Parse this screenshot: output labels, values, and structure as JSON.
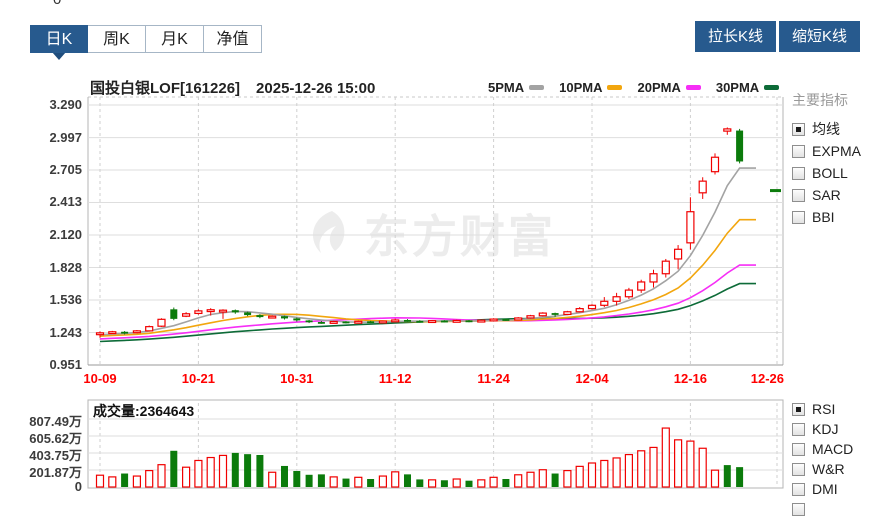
{
  "page": {
    "clipped_top_text": "0"
  },
  "toolbar": {
    "tabs": [
      {
        "label": "日K",
        "active": true
      },
      {
        "label": "周K",
        "active": false
      },
      {
        "label": "月K",
        "active": false
      },
      {
        "label": "净值",
        "active": false
      }
    ],
    "stretch_button": "拉长K线",
    "shrink_button": "缩短K线"
  },
  "header": {
    "title": "国投白银LOF[161226]",
    "datetime": "2025-12-26 15:00"
  },
  "watermark": "东方财富",
  "sidebar": {
    "main_title": "主要指标",
    "main_indicators": [
      {
        "label": "均线",
        "checked": true
      },
      {
        "label": "EXPMA",
        "checked": false
      },
      {
        "label": "BOLL",
        "checked": false
      },
      {
        "label": "SAR",
        "checked": false
      },
      {
        "label": "BBI",
        "checked": false
      }
    ],
    "sub_indicators": [
      {
        "label": "RSI",
        "checked": true
      },
      {
        "label": "KDJ",
        "checked": false
      },
      {
        "label": "MACD",
        "checked": false
      },
      {
        "label": "W&R",
        "checked": false
      },
      {
        "label": "DMI",
        "checked": false
      },
      {
        "label": "",
        "checked": false
      }
    ]
  },
  "volume_panel": {
    "label": "成交量:2364643",
    "y_ticks": [
      "807.49万",
      "605.62万",
      "403.75万",
      "201.87万",
      "0"
    ]
  },
  "chart_data": {
    "type": "candlestick",
    "title": "国投白银LOF[161226]",
    "datetime": "2025-12-26 15:00",
    "y_ticks": [
      "3.290",
      "2.997",
      "2.705",
      "2.413",
      "2.120",
      "1.828",
      "1.536",
      "1.243",
      "0.951"
    ],
    "ylim": [
      0.951,
      3.29
    ],
    "x_labels": [
      "10-09",
      "10-21",
      "10-31",
      "11-12",
      "11-24",
      "12-04",
      "12-16",
      "12-26"
    ],
    "x_label_indices": [
      0,
      8,
      16,
      24,
      32,
      40,
      48,
      52
    ],
    "legend": [
      {
        "label": "5PMA",
        "color": "#a3a3a3",
        "window": 5
      },
      {
        "label": "10PMA",
        "color": "#f2a60e",
        "window": 10
      },
      {
        "label": "20PMA",
        "color": "#f62ef6",
        "window": 20
      },
      {
        "label": "30PMA",
        "color": "#0d6b38",
        "window": 30
      }
    ],
    "up_color": "#f10000",
    "down_color": "#0b7b0b",
    "grid": true,
    "price_marker": 2.52,
    "last_volume_raw": 2364643,
    "volume_y_ticks_wan": [
      807.49,
      605.62,
      403.75,
      201.87,
      0
    ],
    "ma_prehistory": {
      "start": 1.09,
      "end": 1.225,
      "count": 30
    },
    "candles": [
      [
        1.225,
        1.252,
        1.196,
        1.24,
        140,
        "u"
      ],
      [
        1.24,
        1.258,
        1.232,
        1.25,
        120,
        "u"
      ],
      [
        1.25,
        1.256,
        1.226,
        1.24,
        160,
        "d"
      ],
      [
        1.242,
        1.266,
        1.236,
        1.258,
        130,
        "u"
      ],
      [
        1.258,
        1.306,
        1.252,
        1.296,
        195,
        "u"
      ],
      [
        1.3,
        1.372,
        1.294,
        1.362,
        265,
        "u"
      ],
      [
        1.452,
        1.468,
        1.354,
        1.366,
        430,
        "d"
      ],
      [
        1.39,
        1.426,
        1.382,
        1.412,
        235,
        "u"
      ],
      [
        1.415,
        1.452,
        1.404,
        1.438,
        315,
        "u"
      ],
      [
        1.438,
        1.462,
        1.396,
        1.448,
        350,
        "u"
      ],
      [
        1.432,
        1.452,
        1.366,
        1.444,
        375,
        "u"
      ],
      [
        1.444,
        1.45,
        1.412,
        1.424,
        405,
        "d"
      ],
      [
        1.424,
        1.43,
        1.39,
        1.4,
        390,
        "d"
      ],
      [
        1.4,
        1.408,
        1.372,
        1.382,
        380,
        "d"
      ],
      [
        1.382,
        1.398,
        1.37,
        1.39,
        175,
        "u"
      ],
      [
        1.39,
        1.394,
        1.36,
        1.37,
        250,
        "d"
      ],
      [
        1.37,
        1.378,
        1.342,
        1.352,
        190,
        "d"
      ],
      [
        1.352,
        1.356,
        1.328,
        1.338,
        145,
        "d"
      ],
      [
        1.338,
        1.346,
        1.322,
        1.33,
        150,
        "d"
      ],
      [
        1.33,
        1.348,
        1.324,
        1.342,
        120,
        "u"
      ],
      [
        1.342,
        1.346,
        1.324,
        1.33,
        100,
        "d"
      ],
      [
        1.33,
        1.35,
        1.326,
        1.344,
        115,
        "u"
      ],
      [
        1.344,
        1.348,
        1.328,
        1.334,
        95,
        "d"
      ],
      [
        1.334,
        1.352,
        1.33,
        1.346,
        130,
        "u"
      ],
      [
        1.346,
        1.368,
        1.34,
        1.356,
        180,
        "u"
      ],
      [
        1.356,
        1.364,
        1.34,
        1.348,
        150,
        "d"
      ],
      [
        1.348,
        1.354,
        1.332,
        1.34,
        90,
        "d"
      ],
      [
        1.34,
        1.356,
        1.336,
        1.35,
        85,
        "u"
      ],
      [
        1.35,
        1.354,
        1.334,
        1.342,
        80,
        "d"
      ],
      [
        1.342,
        1.358,
        1.338,
        1.352,
        95,
        "u"
      ],
      [
        1.352,
        1.356,
        1.336,
        1.344,
        75,
        "d"
      ],
      [
        1.344,
        1.36,
        1.34,
        1.354,
        85,
        "u"
      ],
      [
        1.354,
        1.372,
        1.348,
        1.364,
        115,
        "u"
      ],
      [
        1.364,
        1.368,
        1.348,
        1.356,
        95,
        "d"
      ],
      [
        1.356,
        1.382,
        1.352,
        1.374,
        145,
        "u"
      ],
      [
        1.374,
        1.402,
        1.368,
        1.394,
        175,
        "u"
      ],
      [
        1.394,
        1.426,
        1.388,
        1.418,
        205,
        "u"
      ],
      [
        1.418,
        1.422,
        1.384,
        1.406,
        160,
        "d"
      ],
      [
        1.406,
        1.438,
        1.4,
        1.43,
        195,
        "u"
      ],
      [
        1.43,
        1.472,
        1.424,
        1.458,
        245,
        "u"
      ],
      [
        1.458,
        1.498,
        1.45,
        1.488,
        285,
        "u"
      ],
      [
        1.488,
        1.562,
        1.472,
        1.524,
        315,
        "u"
      ],
      [
        1.524,
        1.6,
        1.486,
        1.565,
        345,
        "u"
      ],
      [
        1.565,
        1.645,
        1.545,
        1.625,
        385,
        "u"
      ],
      [
        1.625,
        1.718,
        1.6,
        1.698,
        430,
        "u"
      ],
      [
        1.698,
        1.808,
        1.648,
        1.772,
        470,
        "u"
      ],
      [
        1.772,
        1.905,
        1.738,
        1.885,
        700,
        "u"
      ],
      [
        1.905,
        2.03,
        1.812,
        1.992,
        560,
        "u"
      ],
      [
        2.05,
        2.46,
        1.99,
        2.33,
        545,
        "u"
      ],
      [
        2.5,
        2.64,
        2.445,
        2.605,
        460,
        "u"
      ],
      [
        2.69,
        2.855,
        2.665,
        2.82,
        200,
        "u"
      ],
      [
        3.055,
        3.088,
        3.022,
        3.075,
        260,
        "u",
        "d"
      ],
      [
        3.06,
        3.075,
        2.765,
        2.782,
        236,
        "d"
      ]
    ]
  }
}
